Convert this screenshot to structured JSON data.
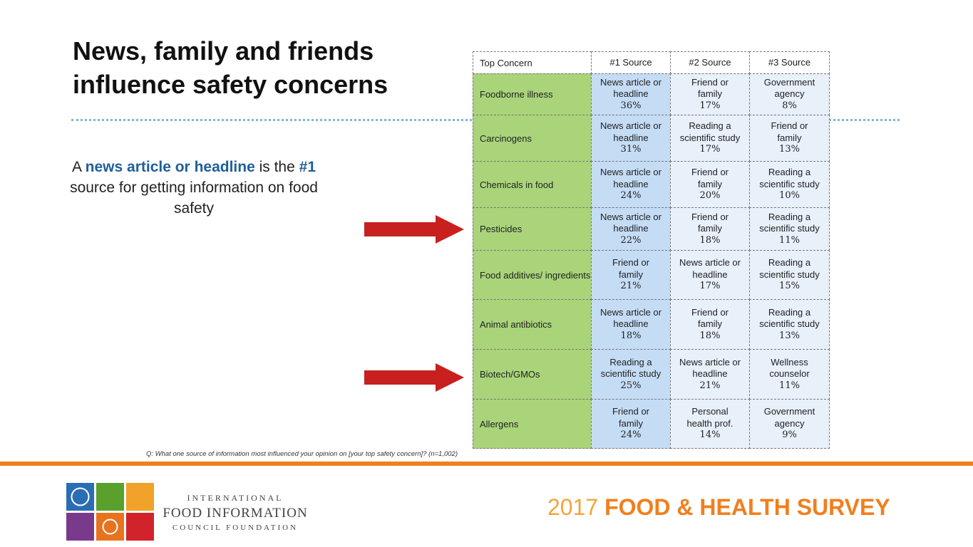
{
  "title": "News, family and friends influence safety concerns",
  "callout": {
    "parts": [
      "A ",
      "news article or headline",
      " is the ",
      "#1",
      " source for getting information on food safety"
    ]
  },
  "table": {
    "header": [
      "Top Concern",
      "#1 Source",
      "#2 Source",
      "#3 Source"
    ],
    "rows": [
      {
        "concern": "Foodborne illness",
        "sources": [
          {
            "lines": [
              "News article or",
              "headline"
            ],
            "percent": "36%"
          },
          {
            "lines": [
              "Friend or",
              "family"
            ],
            "percent": "17%"
          },
          {
            "lines": [
              "Government",
              "agency"
            ],
            "percent": "8%"
          }
        ]
      },
      {
        "concern": "Carcinogens",
        "sources": [
          {
            "lines": [
              "News article or",
              "headline"
            ],
            "percent": "31%"
          },
          {
            "lines": [
              "Reading a",
              "scientific study"
            ],
            "percent": "17%"
          },
          {
            "lines": [
              "Friend or",
              "family"
            ],
            "percent": "13%"
          }
        ]
      },
      {
        "concern": "Chemicals in food",
        "sources": [
          {
            "lines": [
              "News article or",
              "headline"
            ],
            "percent": "24%"
          },
          {
            "lines": [
              "Friend or",
              "family"
            ],
            "percent": "20%"
          },
          {
            "lines": [
              "Reading a",
              "scientific study"
            ],
            "percent": "10%"
          }
        ]
      },
      {
        "concern": "Pesticides",
        "sources": [
          {
            "lines": [
              "News article or",
              "headline"
            ],
            "percent": "22%"
          },
          {
            "lines": [
              "Friend or",
              "family"
            ],
            "percent": "18%"
          },
          {
            "lines": [
              "Reading a",
              "scientific study"
            ],
            "percent": "11%"
          }
        ]
      },
      {
        "concern": "Food additives/ ingredients",
        "sources": [
          {
            "lines": [
              "Friend or",
              "family"
            ],
            "percent": "21%"
          },
          {
            "lines": [
              "News article or",
              "headline"
            ],
            "percent": "17%"
          },
          {
            "lines": [
              "Reading a",
              "scientific study"
            ],
            "percent": "15%"
          }
        ]
      },
      {
        "concern": "Animal antibiotics",
        "sources": [
          {
            "lines": [
              "News article or",
              "headline"
            ],
            "percent": "18%"
          },
          {
            "lines": [
              "Friend or",
              "family"
            ],
            "percent": "18%"
          },
          {
            "lines": [
              "Reading a",
              "scientific study"
            ],
            "percent": "13%"
          }
        ]
      },
      {
        "concern": "Biotech/GMOs",
        "sources": [
          {
            "lines": [
              "Reading a",
              "scientific study"
            ],
            "percent": "25%"
          },
          {
            "lines": [
              "News article or",
              "headline"
            ],
            "percent": "21%"
          },
          {
            "lines": [
              "Wellness",
              "counselor"
            ],
            "percent": "11%"
          }
        ]
      },
      {
        "concern": "Allergens",
        "sources": [
          {
            "lines": [
              "Friend or",
              "family"
            ],
            "percent": "24%"
          },
          {
            "lines": [
              "Personal",
              "health prof."
            ],
            "percent": "14%"
          },
          {
            "lines": [
              "Government",
              "agency"
            ],
            "percent": "9%"
          }
        ]
      }
    ]
  },
  "footnote": "Q: What one source of information most influenced your opinion on [your top safety concern]? (n=1,002)",
  "logo": {
    "lines": [
      "INTERNATIONAL",
      "FOOD INFORMATION",
      "COUNCIL FOUNDATION"
    ]
  },
  "survey": {
    "year": "2017",
    "name": "FOOD & HEALTH SURVEY"
  }
}
